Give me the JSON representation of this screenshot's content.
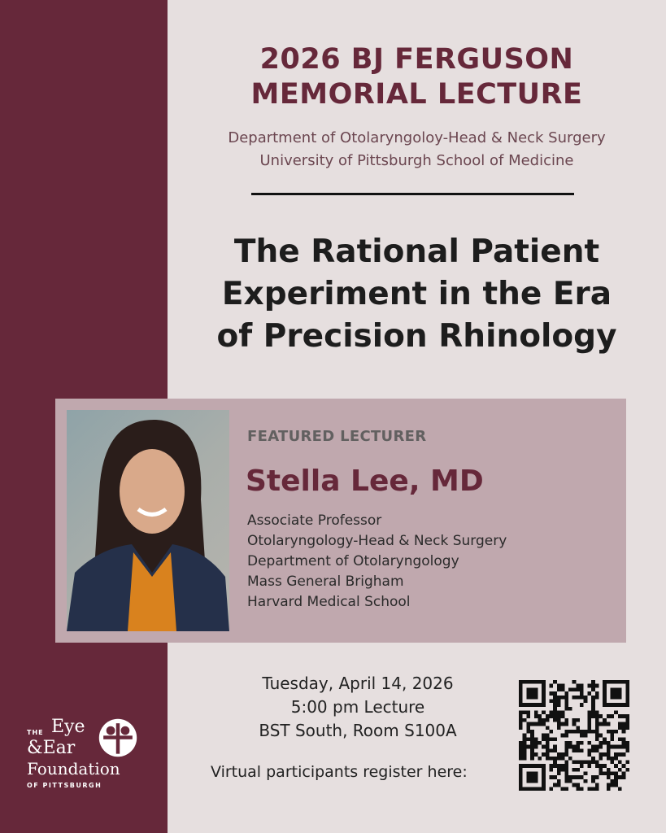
{
  "header": {
    "event_title_line1": "2026 BJ FERGUSON",
    "event_title_line2": "MEMORIAL LECTURE",
    "department": "Department of Otolaryngoloy-Head & Neck Surgery",
    "school": "University of Pittsburgh School of Medicine"
  },
  "lecture": {
    "title_line1": "The Rational Patient",
    "title_line2": "Experiment in the Era",
    "title_line3": "of Precision Rhinology"
  },
  "speaker": {
    "label": "FEATURED LECTURER",
    "name": "Stella Lee, MD",
    "affiliations": [
      "Associate Professor",
      "Otolaryngology-Head & Neck Surgery",
      "Department of Otolaryngology",
      "Mass General Brigham",
      "Harvard Medical School"
    ]
  },
  "event": {
    "date": "Tuesday, April 14, 2026",
    "time": "5:00 pm Lecture",
    "location": "BST South, Room S100A",
    "virtual_text": "Virtual participants register here:"
  },
  "logo": {
    "the": "THE",
    "eye": "Eye",
    "ear": "&Ear",
    "foundation": "Foundation",
    "of_pittsburgh": "OF PITTSBURGH"
  },
  "colors": {
    "maroon": "#66283a",
    "background": "#e6dfdf",
    "card": "#c0a8ae"
  }
}
